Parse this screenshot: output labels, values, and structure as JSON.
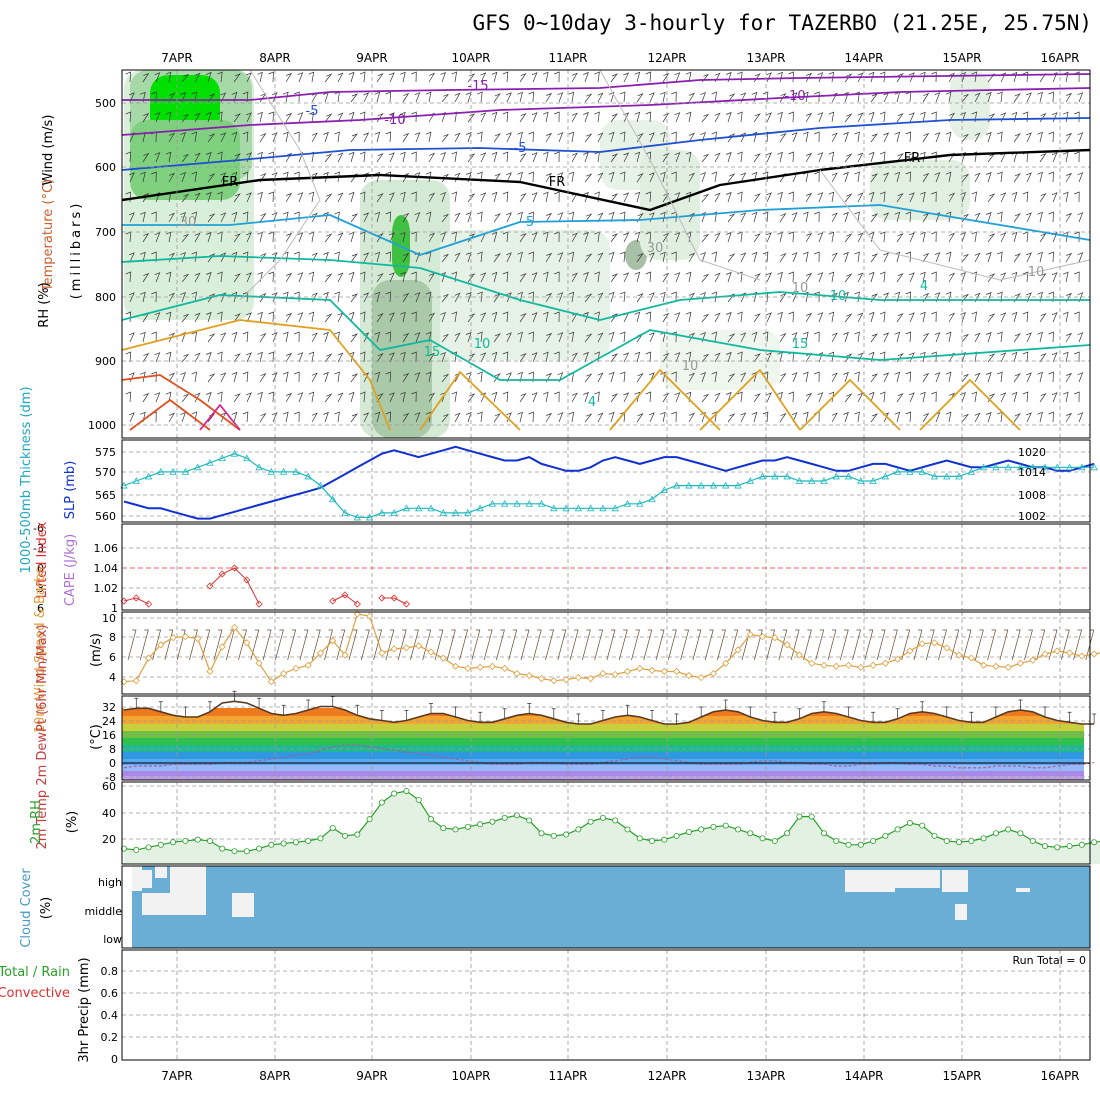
{
  "title": "GFS 0~10day 3-hourly for TAZERBO (21.25E, 25.75N)",
  "dates": [
    "7APR",
    "8APR",
    "9APR",
    "10APR",
    "11APR",
    "12APR",
    "13APR",
    "14APR",
    "15APR",
    "16APR"
  ],
  "colors": {
    "rh_green": "#00c800",
    "temp_purple": "#8a1fb0",
    "temp_blue": "#1f50d0",
    "temp_cyan": "#20a0d8",
    "temp_teal": "#10b8a0",
    "temp_orange": "#e0a020",
    "slp_line": "#1030d0",
    "thickness_line": "#20b8c0",
    "lifted_index": "#e03030",
    "wind_speed": "#e0a040",
    "cloud": "#6aaed6",
    "rh2m": "#28a028"
  },
  "panels": {
    "upper": {
      "label_rh": "RH (%)",
      "label_temp": "Temperature (°C)",
      "label_wind": "Wind (m/s)",
      "label_axis": "(millibars)",
      "yticks": [
        "500",
        "600",
        "700",
        "800",
        "900",
        "1000"
      ],
      "contour_labels": [
        "-15",
        "-10",
        "-10",
        "-5",
        "-5",
        "FR",
        "FR",
        "FR",
        "5",
        "10",
        "10",
        "15",
        "15",
        "30",
        "30",
        "10",
        "10",
        "10",
        "4",
        "4"
      ]
    },
    "slp": {
      "label_left": "1000-500mb Thickness (dm)",
      "label_right": "SLP (mb)",
      "yticks_left": [
        "575",
        "570",
        "565",
        "560"
      ],
      "yticks_right": [
        "1020",
        "1014",
        "1008",
        "1002"
      ]
    },
    "cape": {
      "label_left": "Lifted Index",
      "label_right": "CAPE (J/kg)",
      "yticks_left": [
        "-6",
        "-3",
        "0",
        "3",
        "6"
      ],
      "yticks_right": [
        "1.06",
        "1.04",
        "1.02",
        "1"
      ]
    },
    "wind10": {
      "label": "10m Wind Speed & Barbs",
      "label_unit": "(m/s)",
      "yticks": [
        "10",
        "8",
        "6",
        "4"
      ]
    },
    "temp2m": {
      "label": "2m Temp 2m DewPt (6hr Min/Max)",
      "label_unit": "(°C)",
      "yticks": [
        "32",
        "24",
        "16",
        "8",
        "0",
        "-8"
      ]
    },
    "rh2m": {
      "label": "2m RH",
      "label_unit": "(%)",
      "yticks": [
        "60",
        "40",
        "20"
      ]
    },
    "cloud": {
      "label": "Cloud Cover",
      "label_unit": "(%)",
      "levels": [
        "high",
        "middle",
        "low"
      ]
    },
    "precip": {
      "label_a": "Total / Rain",
      "label_b": "Convective",
      "label_axis": "3hr Precip (mm)",
      "run_total": "Run Total = 0",
      "yticks": [
        "0.8",
        "0.6",
        "0.4",
        "0.2",
        "0"
      ]
    }
  },
  "chart_data": [
    {
      "type": "line",
      "name": "sea level pressure",
      "x_start": "06APR 12Z",
      "x_step_hours": 3,
      "ylim": [
        1000,
        1024
      ],
      "values": [
        1006,
        1005,
        1004,
        1004,
        1003,
        1002,
        1001,
        1001,
        1002,
        1003,
        1004,
        1005,
        1006,
        1007,
        1008,
        1009,
        1010,
        1012,
        1014,
        1016,
        1018,
        1020,
        1021,
        1020,
        1019,
        1020,
        1021,
        1022,
        1021,
        1020,
        1019,
        1018,
        1018,
        1019,
        1017,
        1016,
        1015,
        1015,
        1016,
        1018,
        1019,
        1018,
        1017,
        1018,
        1019,
        1019,
        1018,
        1017,
        1016,
        1015,
        1016,
        1017,
        1018,
        1018,
        1019,
        1018,
        1017,
        1016,
        1015,
        1015,
        1016,
        1017,
        1017,
        1016,
        1015,
        1016,
        1017,
        1018,
        1017,
        1016,
        1016,
        1017,
        1018,
        1017,
        1016,
        1016,
        1015,
        1015,
        1016,
        1017
      ]
    },
    {
      "type": "line",
      "name": "1000-500mb thickness",
      "x_start": "06APR 12Z",
      "x_step_hours": 3,
      "ylim": [
        559,
        577
      ],
      "values": [
        567,
        568,
        569,
        570,
        570,
        570,
        571,
        572,
        573,
        574,
        573,
        571,
        570,
        570,
        570,
        569,
        567,
        564,
        561,
        560,
        560,
        561,
        561,
        562,
        562,
        562,
        561,
        561,
        561,
        562,
        563,
        563,
        563,
        563,
        563,
        562,
        562,
        562,
        562,
        562,
        562,
        563,
        563,
        564,
        566,
        567,
        567,
        567,
        567,
        567,
        567,
        568,
        569,
        569,
        569,
        568,
        568,
        568,
        569,
        569,
        568,
        568,
        569,
        570,
        570,
        570,
        569,
        569,
        569,
        570,
        571,
        571,
        571,
        571,
        571,
        571,
        571,
        571,
        571,
        571
      ]
    },
    {
      "type": "line",
      "name": "lifted index",
      "x_start": "06APR 12Z",
      "x_step_hours": 3,
      "ylim": [
        6,
        -6
      ],
      "values": [
        5.5,
        5,
        6,
        null,
        null,
        null,
        null,
        3,
        1,
        0,
        2,
        6,
        null,
        null,
        null,
        null,
        null,
        5.5,
        4.5,
        6,
        null,
        5,
        5,
        6
      ]
    },
    {
      "type": "line",
      "name": "10m wind speed",
      "x_start": "06APR 12Z",
      "x_step_hours": 3,
      "ylim": [
        2,
        10
      ],
      "values": [
        3.2,
        3.3,
        5.5,
        6.8,
        7.5,
        7.6,
        7.4,
        4.2,
        6.6,
        8.5,
        7.0,
        5.0,
        3.2,
        4.0,
        4.5,
        4.8,
        6.0,
        7.2,
        5.8,
        9.8,
        9.6,
        6.0,
        6.4,
        6.5,
        6.7,
        6.1,
        5.5,
        4.7,
        4.5,
        4.6,
        4.7,
        4.5,
        4.0,
        3.8,
        3.5,
        3.3,
        3.4,
        3.6,
        3.5,
        4.0,
        3.9,
        4.2,
        4.5,
        4.3,
        4.2,
        4.2,
        3.8,
        3.6,
        4.0,
        5.0,
        6.3,
        7.8,
        7.6,
        7.5,
        6.8,
        5.8,
        5.0,
        4.8,
        4.7,
        4.8,
        4.6,
        4.8,
        5.0,
        5.4,
        6.2,
        6.9,
        7.0,
        6.5,
        5.8,
        5.5,
        4.8,
        4.7,
        4.6,
        5.0,
        5.3,
        5.9,
        6.2,
        6.0,
        5.7,
        5.9,
        6.1
      ]
    },
    {
      "type": "area",
      "name": "2m temperature",
      "x_start": "06APR 12Z",
      "x_step_hours": 3,
      "ylim": [
        -12,
        36
      ],
      "values": [
        28,
        29,
        29,
        27,
        25,
        24,
        24,
        27,
        32,
        33,
        32,
        29,
        26,
        25,
        26,
        28,
        30,
        30,
        28,
        25,
        23,
        22,
        21,
        22,
        24,
        26,
        26,
        24,
        22,
        21,
        21,
        23,
        25,
        26,
        25,
        23,
        21,
        20,
        20,
        22,
        24,
        25,
        24,
        22,
        20,
        20,
        21,
        24,
        27,
        28,
        27,
        24,
        22,
        21,
        21,
        23,
        26,
        27,
        26,
        24,
        22,
        21,
        21,
        23,
        26,
        27,
        26,
        24,
        22,
        21,
        21,
        24,
        27,
        28,
        27,
        24,
        22,
        21,
        20,
        20
      ]
    },
    {
      "type": "line",
      "name": "2m dew point",
      "x_start": "06APR 12Z",
      "x_step_hours": 3,
      "ylim": [
        -12,
        36
      ],
      "values": [
        -5,
        -4,
        -4,
        -4,
        -3,
        -3,
        -3,
        -3,
        -2,
        -2,
        -2,
        -1,
        0,
        1,
        2,
        3,
        5,
        7,
        8,
        8,
        7,
        6,
        5,
        4,
        3,
        2,
        1,
        0,
        -1,
        -2,
        -3,
        -3,
        -3,
        -2,
        -2,
        -2,
        -3,
        -3,
        -3,
        -2,
        -1,
        0,
        1,
        1,
        0,
        -1,
        -2,
        -3,
        -3,
        -3,
        -3,
        -2,
        -1,
        -1,
        -2,
        -2,
        -3,
        -3,
        -4,
        -4,
        -3,
        -3,
        -2,
        -2,
        -3,
        -3,
        -4,
        -4,
        -5,
        -5,
        -5,
        -4,
        -4,
        -4,
        -5,
        -5,
        -4,
        -3,
        -3,
        -2
      ]
    },
    {
      "type": "area",
      "name": "2m relative humidity",
      "x_start": "06APR 12Z",
      "x_step_hours": 3,
      "ylim": [
        0,
        64
      ],
      "values": [
        12,
        11,
        13,
        15,
        17,
        18,
        19,
        18,
        12,
        10,
        10,
        12,
        15,
        16,
        17,
        18,
        20,
        28,
        22,
        23,
        35,
        48,
        55,
        57,
        50,
        35,
        28,
        27,
        29,
        31,
        33,
        36,
        38,
        34,
        24,
        22,
        23,
        27,
        33,
        36,
        34,
        27,
        20,
        18,
        19,
        22,
        25,
        27,
        29,
        30,
        27,
        24,
        20,
        18,
        24,
        37,
        37,
        24,
        18,
        15,
        15,
        18,
        22,
        27,
        32,
        30,
        22,
        18,
        17,
        18,
        20,
        24,
        27,
        24,
        18,
        14,
        13,
        14,
        15,
        17,
        18,
        17
      ]
    }
  ]
}
